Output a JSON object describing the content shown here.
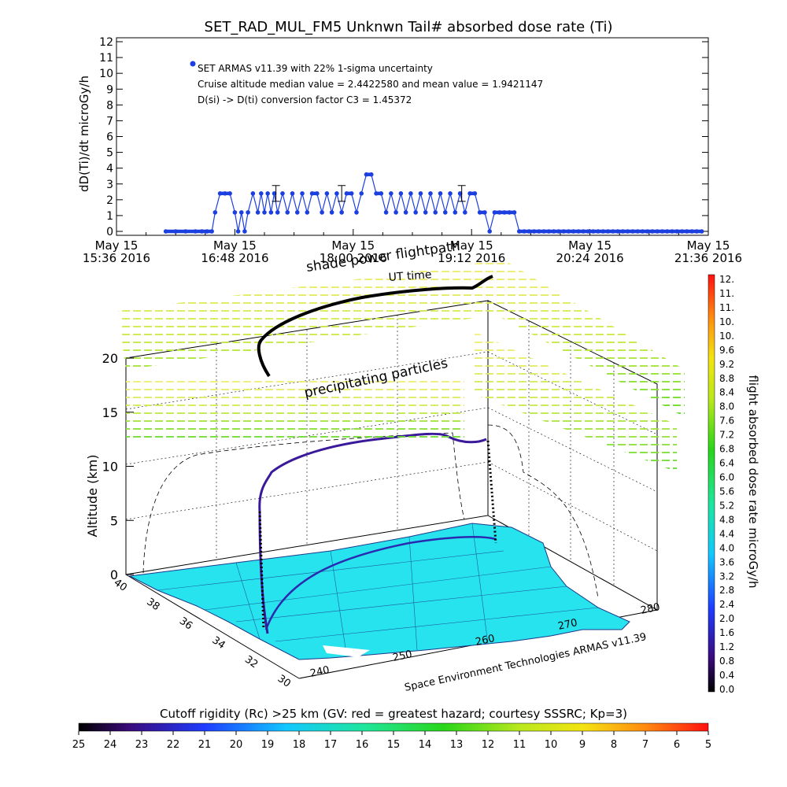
{
  "chart_data": [
    {
      "type": "line",
      "title": "SET_RAD_MUL_FM5 Unknwn Tail#  absorbed dose rate (Ti)",
      "ylabel": "dD(Ti)/dt microGy/h",
      "xlabel": "",
      "ylim": [
        0,
        12
      ],
      "y_ticks": [
        "0",
        "1",
        "2",
        "3",
        "4",
        "5",
        "6",
        "7",
        "8",
        "9",
        "10",
        "11",
        "12"
      ],
      "x_ticks": [
        {
          "line1": "May 15",
          "line2": "15:36 2016"
        },
        {
          "line1": "May 15",
          "line2": "16:48 2016"
        },
        {
          "line1": "May 15",
          "line2": "18:00 2016"
        },
        {
          "line1": "May 15",
          "line2": "19:12 2016"
        },
        {
          "line1": "May 15",
          "line2": "20:24 2016"
        },
        {
          "line1": "May 15",
          "line2": "21:36 2016"
        }
      ],
      "xlim_minutes": [
        0,
        360
      ],
      "series_color": "#1c3fe0",
      "legend": "SET ARMAS v11.39 with 22% 1-sigma uncertainty",
      "annotations": [
        "Cruise altitude median value = 2.4422580 and mean value = 1.9421147",
        "D(si) -> D(ti) conversion factor C3 = 1.45372"
      ],
      "series": [
        {
          "name": "SET ARMAS v11.39 with 22% 1-sigma uncertainty",
          "x": [
            30,
            36,
            42,
            48,
            52,
            55,
            58,
            60,
            63,
            66,
            69,
            72,
            74,
            76,
            78,
            80,
            83,
            86,
            88,
            90,
            92,
            94,
            96,
            98,
            101,
            104,
            107,
            110,
            113,
            116,
            119,
            122,
            125,
            128,
            131,
            134,
            137,
            140,
            143,
            146,
            149,
            152,
            155,
            158,
            161,
            164,
            167,
            170,
            173,
            176,
            179,
            182,
            185,
            188,
            191,
            194,
            197,
            200,
            203,
            206,
            209,
            212,
            215,
            218,
            221,
            224,
            227,
            230,
            233,
            236,
            239,
            242,
            245,
            248,
            251,
            254,
            257,
            260,
            263,
            266,
            269,
            272,
            275,
            278,
            281,
            284,
            287,
            290,
            293,
            296,
            299,
            302,
            305,
            308,
            311,
            314,
            317,
            320,
            323,
            326,
            329,
            332,
            335,
            338,
            341,
            344,
            347,
            350,
            353,
            356
          ],
          "y": [
            0,
            0,
            0,
            0,
            0,
            0,
            0,
            1.2,
            2.4,
            2.4,
            2.4,
            1.2,
            0,
            1.2,
            0,
            1.2,
            2.4,
            1.2,
            2.4,
            1.2,
            2.4,
            1.2,
            2.4,
            1.2,
            2.4,
            1.2,
            2.4,
            1.2,
            2.4,
            1.2,
            2.4,
            2.4,
            1.2,
            2.4,
            1.2,
            2.4,
            1.2,
            2.4,
            2.4,
            1.2,
            2.4,
            3.6,
            3.6,
            2.4,
            2.4,
            1.2,
            2.4,
            1.2,
            2.4,
            1.2,
            2.4,
            1.2,
            2.4,
            1.2,
            2.4,
            1.2,
            2.4,
            1.2,
            2.4,
            1.2,
            2.4,
            1.2,
            2.4,
            2.4,
            1.2,
            1.2,
            0,
            1.2,
            1.2,
            1.2,
            1.2,
            1.2,
            0,
            0,
            0,
            0,
            0,
            0,
            0,
            0,
            0,
            0,
            0,
            0,
            0,
            0,
            0,
            0,
            0,
            0,
            0,
            0,
            0,
            0,
            0,
            0,
            0,
            0,
            0,
            0,
            0,
            0,
            0,
            0,
            0,
            0,
            0,
            0,
            0,
            0
          ],
          "error_bars": [
            {
              "x": 97,
              "y": 2.4,
              "err": 0.5
            },
            {
              "x": 137,
              "y": 2.4,
              "err": 0.5
            },
            {
              "x": 210,
              "y": 2.4,
              "err": 0.5
            }
          ]
        }
      ]
    },
    {
      "type": "surface-3d",
      "ylabel": "Altitude (km)",
      "z_ticks": [
        "0",
        "5",
        "10",
        "15",
        "20"
      ],
      "lat_ticks": [
        "40",
        "38",
        "36",
        "34",
        "32",
        "30"
      ],
      "lon_ticks": [
        "240",
        "250",
        "260",
        "270",
        "280"
      ],
      "overlay_labels": [
        "shade power flightpath",
        "UT time",
        "precipitating particles"
      ],
      "credit": "Space Environment Technologies ARMAS v11.39",
      "ground_color": "#26e3ee"
    }
  ],
  "colorbar_right": {
    "label": "flight absorbed dose rate microGy/h",
    "ticks": [
      "12.",
      "11.",
      "11.",
      "10.",
      "10.",
      "9.6",
      "9.2",
      "8.8",
      "8.4",
      "8.0",
      "7.6",
      "7.2",
      "6.8",
      "6.4",
      "6.0",
      "5.6",
      "5.2",
      "4.8",
      "4.4",
      "4.0",
      "3.6",
      "3.2",
      "2.8",
      "2.4",
      "2.0",
      "1.6",
      "1.2",
      "0.8",
      "0.4",
      "0.0"
    ]
  },
  "colorbar_bottom": {
    "title": "Cutoff rigidity (Rc) >25 km (GV: red = greatest hazard; courtesy SSSRC; Kp=3)",
    "ticks": [
      "25",
      "24",
      "23",
      "22",
      "21",
      "20",
      "19",
      "18",
      "17",
      "16",
      "15",
      "14",
      "13",
      "12",
      "11",
      "10",
      "9",
      "8",
      "7",
      "6",
      "5"
    ]
  }
}
